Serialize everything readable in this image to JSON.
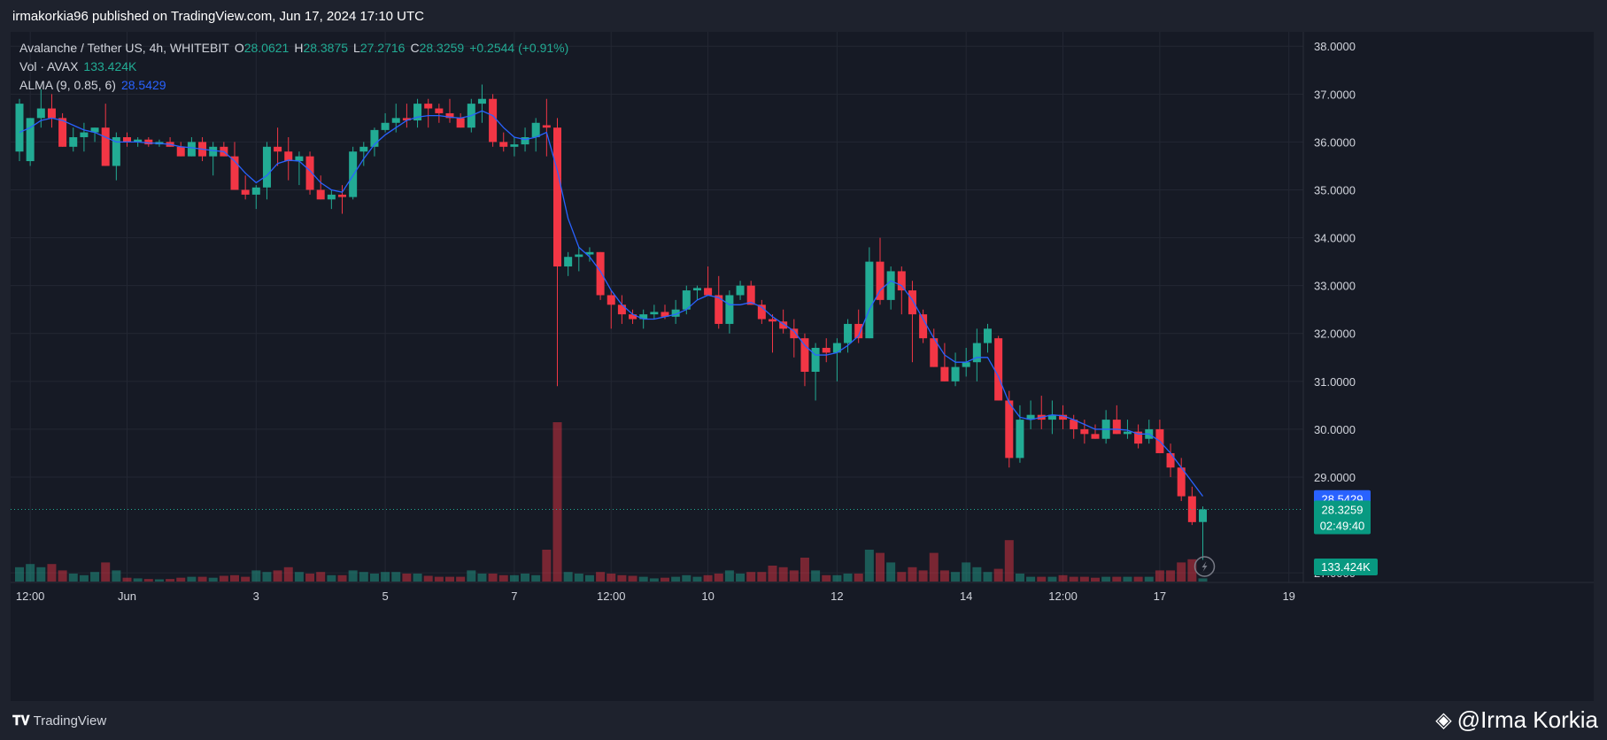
{
  "header": {
    "published": "irmakorkia96 published on TradingView.com, Jun 17, 2024 17:10 UTC"
  },
  "legend": {
    "symbol": "Avalanche / Tether US, 4h, WHITEBIT",
    "o_label": "O",
    "o": "28.0621",
    "h_label": "H",
    "h": "28.3875",
    "l_label": "L",
    "l": "27.2716",
    "c_label": "C",
    "c": "28.3259",
    "change": "+0.2544 (+0.91%)",
    "vol_label": "Vol · AVAX",
    "vol_value": "133.424K",
    "alma_label": "ALMA (9, 0.85, 6)",
    "alma_value": "28.5429"
  },
  "footer": {
    "brand": "TradingView",
    "signature": "@Irma Korkia"
  },
  "colors": {
    "up": "#22ab94",
    "down": "#f23645",
    "alma": "#2962ff",
    "bg": "#161a25",
    "grid": "#232733"
  },
  "chart_data": {
    "type": "candlestick",
    "title": "Avalanche / Tether US, 4h, WHITEBIT",
    "ylim": [
      26.8,
      38.3
    ],
    "y_ticks": [
      "38.0000",
      "37.0000",
      "36.0000",
      "35.0000",
      "34.0000",
      "33.0000",
      "32.0000",
      "31.0000",
      "30.0000",
      "29.0000",
      "27.0000"
    ],
    "x_ticks": [
      {
        "label": "12:00",
        "i": 1
      },
      {
        "label": "Jun",
        "i": 10
      },
      {
        "label": "3",
        "i": 22
      },
      {
        "label": "5",
        "i": 34
      },
      {
        "label": "7",
        "i": 46
      },
      {
        "label": "12:00",
        "i": 55
      },
      {
        "label": "10",
        "i": 64
      },
      {
        "label": "12",
        "i": 76
      },
      {
        "label": "14",
        "i": 88
      },
      {
        "label": "12:00",
        "i": 97
      },
      {
        "label": "17",
        "i": 106
      },
      {
        "label": "19",
        "i": 118
      }
    ],
    "price_labels": [
      {
        "text": "28.5429",
        "value": 28.5429,
        "color": "#2962ff"
      },
      {
        "text": "28.3259",
        "sub": "02:49:40",
        "value": 28.3259,
        "color": "#089981"
      }
    ],
    "volume_label": {
      "text": "133.424K",
      "color": "#089981"
    },
    "candles": [
      [
        35.8,
        36.9,
        35.6,
        36.8,
        0.45
      ],
      [
        35.6,
        36.5,
        35.5,
        36.5,
        0.55
      ],
      [
        36.5,
        37.1,
        36.3,
        36.7,
        0.45
      ],
      [
        36.7,
        37.0,
        36.3,
        36.5,
        0.55
      ],
      [
        36.5,
        36.6,
        35.9,
        35.9,
        0.35
      ],
      [
        35.9,
        36.3,
        35.8,
        36.1,
        0.25
      ],
      [
        36.1,
        36.4,
        35.8,
        36.2,
        0.2
      ],
      [
        36.2,
        36.3,
        36.0,
        36.3,
        0.3
      ],
      [
        36.3,
        36.8,
        35.5,
        35.5,
        0.6
      ],
      [
        35.5,
        36.2,
        35.2,
        36.1,
        0.35
      ],
      [
        36.1,
        36.2,
        35.9,
        36.0,
        0.12
      ],
      [
        36.0,
        36.1,
        35.9,
        36.05,
        0.1
      ],
      [
        36.05,
        36.1,
        35.9,
        35.95,
        0.08
      ],
      [
        35.95,
        36.05,
        35.9,
        36.0,
        0.07
      ],
      [
        36.0,
        36.1,
        35.9,
        35.9,
        0.08
      ],
      [
        35.9,
        36.0,
        35.7,
        35.7,
        0.12
      ],
      [
        35.7,
        36.1,
        35.7,
        36.0,
        0.15
      ],
      [
        36.0,
        36.1,
        35.6,
        35.7,
        0.15
      ],
      [
        35.7,
        36.0,
        35.3,
        35.9,
        0.12
      ],
      [
        35.9,
        36.0,
        35.7,
        35.7,
        0.18
      ],
      [
        35.7,
        36.0,
        35.0,
        35.0,
        0.2
      ],
      [
        35.0,
        35.3,
        34.8,
        34.9,
        0.15
      ],
      [
        34.9,
        35.1,
        34.6,
        35.05,
        0.35
      ],
      [
        35.05,
        36.0,
        34.8,
        35.9,
        0.3
      ],
      [
        35.9,
        36.3,
        35.5,
        35.8,
        0.35
      ],
      [
        35.8,
        36.1,
        35.2,
        35.6,
        0.45
      ],
      [
        35.6,
        35.8,
        35.1,
        35.7,
        0.3
      ],
      [
        35.7,
        35.8,
        34.9,
        35.0,
        0.25
      ],
      [
        35.0,
        35.3,
        34.8,
        34.8,
        0.3
      ],
      [
        34.8,
        35.0,
        34.6,
        34.9,
        0.2
      ],
      [
        34.9,
        35.1,
        34.5,
        34.85,
        0.2
      ],
      [
        34.85,
        35.9,
        34.8,
        35.8,
        0.35
      ],
      [
        35.8,
        36.0,
        35.5,
        35.9,
        0.3
      ],
      [
        35.9,
        36.3,
        35.7,
        36.25,
        0.25
      ],
      [
        36.25,
        36.6,
        36.2,
        36.4,
        0.3
      ],
      [
        36.4,
        36.8,
        36.2,
        36.5,
        0.3
      ],
      [
        36.5,
        36.8,
        36.3,
        36.45,
        0.25
      ],
      [
        36.45,
        36.9,
        36.3,
        36.8,
        0.25
      ],
      [
        36.8,
        36.9,
        36.3,
        36.7,
        0.18
      ],
      [
        36.7,
        36.8,
        36.4,
        36.6,
        0.15
      ],
      [
        36.6,
        36.9,
        36.4,
        36.5,
        0.15
      ],
      [
        36.5,
        36.6,
        36.3,
        36.3,
        0.15
      ],
      [
        36.3,
        36.9,
        36.2,
        36.8,
        0.35
      ],
      [
        36.8,
        37.2,
        36.4,
        36.9,
        0.25
      ],
      [
        36.9,
        37.0,
        35.9,
        36.0,
        0.25
      ],
      [
        36.0,
        36.2,
        35.8,
        35.9,
        0.2
      ],
      [
        35.9,
        36.1,
        35.7,
        35.95,
        0.2
      ],
      [
        35.95,
        36.3,
        35.8,
        36.1,
        0.25
      ],
      [
        36.1,
        36.5,
        35.8,
        36.4,
        0.2
      ],
      [
        36.35,
        36.9,
        35.7,
        36.3,
        1.0
      ],
      [
        36.3,
        36.5,
        30.9,
        33.4,
        5.0
      ],
      [
        33.4,
        33.7,
        33.2,
        33.6,
        0.3
      ],
      [
        33.6,
        33.8,
        33.3,
        33.65,
        0.25
      ],
      [
        33.65,
        33.8,
        33.5,
        33.7,
        0.2
      ],
      [
        33.7,
        33.7,
        32.7,
        32.8,
        0.3
      ],
      [
        32.8,
        32.9,
        32.1,
        32.6,
        0.25
      ],
      [
        32.6,
        32.8,
        32.2,
        32.4,
        0.2
      ],
      [
        32.4,
        32.5,
        32.2,
        32.3,
        0.18
      ],
      [
        32.3,
        32.5,
        32.1,
        32.4,
        0.15
      ],
      [
        32.4,
        32.6,
        32.3,
        32.45,
        0.1
      ],
      [
        32.45,
        32.6,
        32.3,
        32.35,
        0.12
      ],
      [
        32.35,
        32.7,
        32.2,
        32.5,
        0.15
      ],
      [
        32.5,
        33.0,
        32.4,
        32.9,
        0.2
      ],
      [
        32.9,
        33.0,
        32.7,
        32.95,
        0.15
      ],
      [
        32.95,
        33.4,
        32.8,
        32.8,
        0.2
      ],
      [
        32.8,
        33.2,
        32.1,
        32.2,
        0.25
      ],
      [
        32.2,
        32.9,
        32.0,
        32.8,
        0.35
      ],
      [
        32.8,
        33.1,
        32.7,
        33.0,
        0.25
      ],
      [
        33.0,
        33.1,
        32.6,
        32.6,
        0.3
      ],
      [
        32.6,
        32.7,
        32.2,
        32.3,
        0.3
      ],
      [
        32.3,
        32.4,
        31.6,
        32.25,
        0.5
      ],
      [
        32.25,
        32.5,
        32.0,
        32.1,
        0.45
      ],
      [
        32.1,
        32.3,
        31.5,
        31.9,
        0.35
      ],
      [
        31.9,
        32.0,
        30.9,
        31.2,
        0.75
      ],
      [
        31.2,
        31.8,
        30.6,
        31.7,
        0.35
      ],
      [
        31.7,
        31.9,
        31.4,
        31.6,
        0.2
      ],
      [
        31.6,
        31.9,
        31.0,
        31.8,
        0.2
      ],
      [
        31.8,
        32.3,
        31.6,
        32.2,
        0.25
      ],
      [
        32.2,
        32.5,
        31.8,
        31.9,
        0.25
      ],
      [
        31.9,
        33.8,
        31.9,
        33.5,
        1.0
      ],
      [
        33.5,
        34.0,
        32.6,
        32.7,
        0.9
      ],
      [
        32.7,
        33.4,
        32.5,
        33.3,
        0.6
      ],
      [
        33.3,
        33.4,
        32.4,
        32.9,
        0.3
      ],
      [
        32.9,
        33.1,
        31.4,
        32.4,
        0.45
      ],
      [
        32.4,
        32.5,
        31.8,
        31.9,
        0.35
      ],
      [
        31.9,
        32.1,
        31.3,
        31.3,
        0.9
      ],
      [
        31.3,
        31.8,
        31.0,
        31.0,
        0.35
      ],
      [
        31.0,
        31.6,
        30.9,
        31.3,
        0.3
      ],
      [
        31.3,
        31.7,
        31.1,
        31.4,
        0.6
      ],
      [
        31.4,
        32.1,
        31.0,
        31.8,
        0.45
      ],
      [
        31.8,
        32.2,
        31.6,
        32.1,
        0.3
      ],
      [
        31.9,
        31.95,
        30.6,
        30.6,
        0.4
      ],
      [
        30.6,
        30.8,
        29.2,
        29.4,
        1.3
      ],
      [
        29.4,
        30.5,
        29.3,
        30.2,
        0.25
      ],
      [
        30.2,
        30.6,
        30.0,
        30.3,
        0.15
      ],
      [
        30.3,
        30.7,
        30.0,
        30.2,
        0.15
      ],
      [
        30.2,
        30.6,
        29.9,
        30.3,
        0.15
      ],
      [
        30.3,
        30.5,
        30.0,
        30.2,
        0.2
      ],
      [
        30.2,
        30.3,
        29.8,
        30.0,
        0.15
      ],
      [
        30.0,
        30.2,
        29.7,
        29.9,
        0.15
      ],
      [
        29.9,
        30.1,
        29.8,
        29.8,
        0.12
      ],
      [
        29.8,
        30.4,
        29.7,
        30.2,
        0.15
      ],
      [
        30.2,
        30.5,
        29.9,
        29.9,
        0.15
      ],
      [
        29.9,
        30.2,
        29.8,
        29.95,
        0.15
      ],
      [
        29.95,
        30.1,
        29.6,
        29.7,
        0.15
      ],
      [
        29.8,
        30.2,
        29.7,
        30.0,
        0.15
      ],
      [
        30.0,
        30.2,
        29.5,
        29.5,
        0.35
      ],
      [
        29.5,
        29.7,
        29.0,
        29.2,
        0.35
      ],
      [
        29.2,
        29.4,
        28.5,
        28.6,
        0.6
      ],
      [
        28.6,
        28.8,
        28.0,
        28.06,
        0.7
      ],
      [
        28.0621,
        28.3875,
        27.2716,
        28.3259,
        0.1
      ]
    ],
    "alma": [
      36.2,
      36.3,
      36.45,
      36.5,
      36.45,
      36.35,
      36.25,
      36.2,
      36.1,
      36.0,
      36.0,
      36.0,
      35.98,
      35.97,
      35.95,
      35.9,
      35.88,
      35.85,
      35.82,
      35.8,
      35.6,
      35.35,
      35.15,
      35.3,
      35.55,
      35.62,
      35.6,
      35.4,
      35.15,
      35.0,
      34.95,
      35.3,
      35.65,
      35.95,
      36.15,
      36.3,
      36.45,
      36.52,
      36.55,
      36.55,
      36.52,
      36.5,
      36.55,
      36.65,
      36.55,
      36.3,
      36.1,
      36.05,
      36.1,
      36.2,
      35.4,
      34.4,
      33.8,
      33.6,
      33.3,
      32.9,
      32.6,
      32.4,
      32.3,
      32.3,
      32.35,
      32.4,
      32.5,
      32.7,
      32.8,
      32.75,
      32.6,
      32.6,
      32.65,
      32.55,
      32.35,
      32.2,
      32.05,
      31.75,
      31.55,
      31.55,
      31.6,
      31.75,
      31.95,
      32.5,
      32.9,
      33.1,
      33.0,
      32.7,
      32.3,
      31.9,
      31.55,
      31.4,
      31.4,
      31.5,
      31.5,
      31.1,
      30.55,
      30.25,
      30.2,
      30.25,
      30.3,
      30.28,
      30.2,
      30.1,
      30.0,
      30.0,
      30.0,
      29.98,
      29.9,
      29.9,
      29.75,
      29.5,
      29.2,
      28.9,
      28.6
    ]
  }
}
